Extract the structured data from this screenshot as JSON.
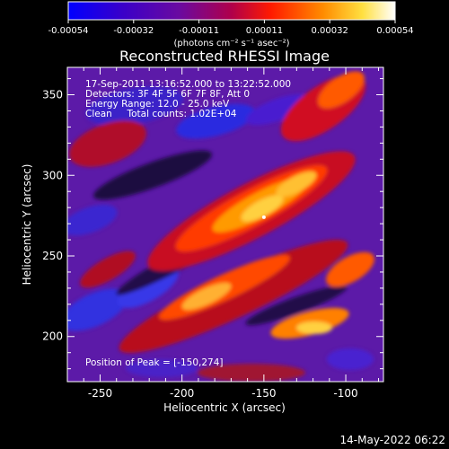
{
  "chart_data": {
    "type": "heatmap",
    "title": "Reconstructed RHESSI Image",
    "xlabel": "Heliocentric X (arcsec)",
    "ylabel": "Heliocentric Y (arcsec)",
    "xlim": [
      -270,
      -77
    ],
    "ylim": [
      172,
      367
    ],
    "xticks": [
      -250,
      -200,
      -150,
      -100
    ],
    "yticks": [
      200,
      250,
      300,
      350
    ],
    "colorbar": {
      "label": "(photons cm⁻² s⁻¹ asec⁻²)",
      "range": [
        -0.00054,
        0.00054
      ],
      "ticks": [
        "-0.00054",
        "-0.00032",
        "-0.00011",
        "0.00011",
        "0.00032",
        "0.00054"
      ]
    },
    "info_lines": [
      "17-Sep-2011 13:16:52.000 to 13:22:52.000",
      "Detectors: 3F 4F 5F 6F 7F 8F, Att 0",
      "Energy Range: 12.0 - 25.0 keV",
      "Clean     Total counts: 1.02E+04"
    ],
    "peak_label": "Position of Peak = [-150,274]",
    "peak": [
      -150,
      274
    ]
  },
  "footer": {
    "date": "14-May-2022 06:22"
  }
}
